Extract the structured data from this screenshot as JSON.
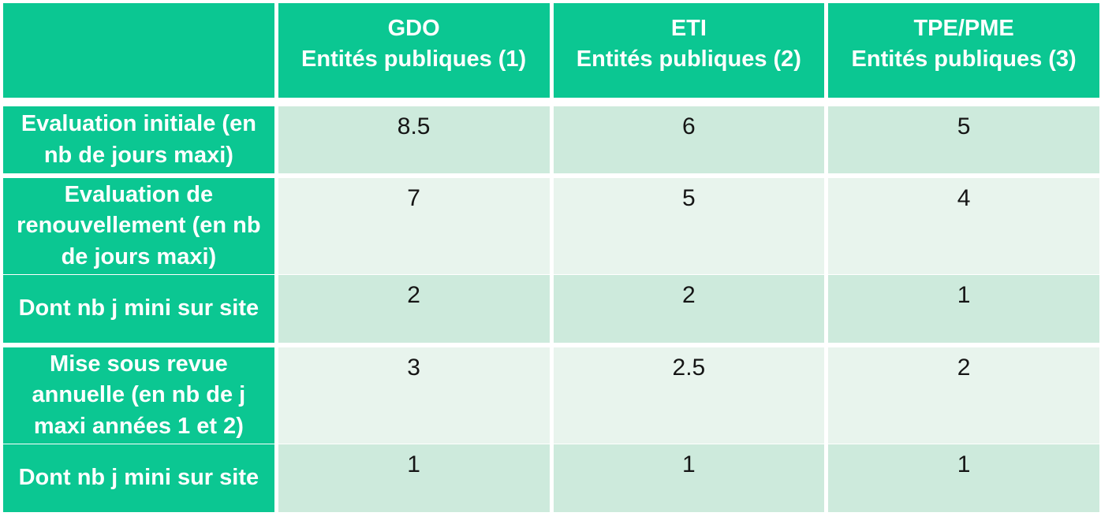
{
  "theme": {
    "green": "#0bc792",
    "mint_dark": "#cdeadc",
    "mint_light": "#e8f4ed",
    "page_bg": "#ffffff",
    "label_text": "#ffffff",
    "value_text": "#151515"
  },
  "header": {
    "columns": [
      {
        "line1": "GDO",
        "line2": "Entités publiques (1)"
      },
      {
        "line1": "ETI",
        "line2": "Entités publiques (2)"
      },
      {
        "line1": "TPE/PME",
        "line2": "Entités publiques (3)"
      }
    ]
  },
  "chart_data": {
    "type": "table",
    "title": "",
    "columns": [
      "",
      "GDO Entités publiques (1)",
      "ETI Entités publiques (2)",
      "TPE/PME Entités publiques (3)"
    ],
    "rows": [
      {
        "label": "Evaluation initiale (en nb de jours maxi)",
        "values": [
          "8.5",
          "6",
          "5"
        ]
      },
      {
        "label": "Evaluation de renouvellement (en nb de jours maxi)",
        "values": [
          "7",
          "5",
          "4"
        ]
      },
      {
        "label": "Dont nb j mini sur site",
        "values": [
          "2",
          "2",
          "1"
        ]
      },
      {
        "label": "Mise sous revue annuelle (en nb de j maxi années 1 et 2)",
        "values": [
          "3",
          "2.5",
          "2"
        ]
      },
      {
        "label": "Dont nb j mini sur site",
        "values": [
          "1",
          "1",
          "1"
        ]
      }
    ]
  }
}
